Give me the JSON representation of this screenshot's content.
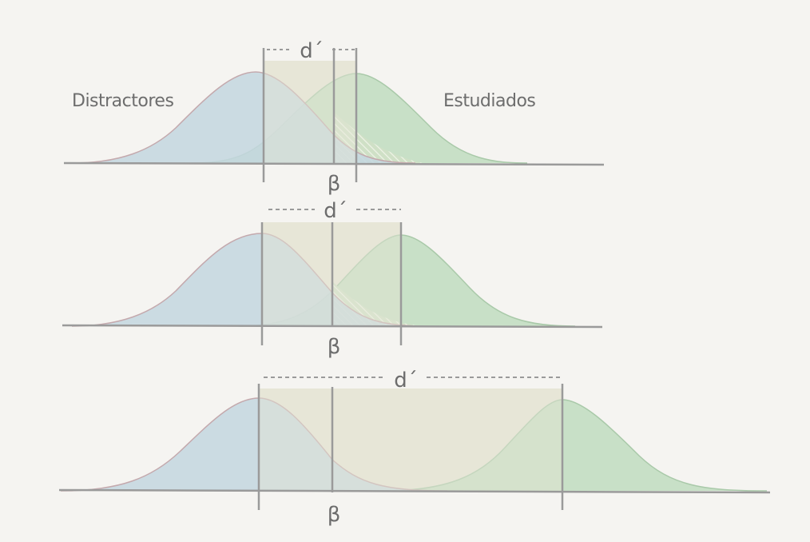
{
  "labels": {
    "distractors": "Distractores",
    "studied": "Estudiados",
    "d_prime": "d´",
    "beta": "β"
  },
  "colors": {
    "background": "#f5f4f1",
    "distractor_fill": "#c3d6df",
    "distractor_stroke": "#c4a9ad",
    "studied_fill": "#bfdcbf",
    "studied_stroke": "#a9c9a9",
    "overlap_band": "#e2e2cf",
    "line": "#9a9a9a",
    "text": "#6d6d6d"
  },
  "panels": [
    {
      "label": "small-separation",
      "d_prime": 0.5,
      "hatched_overlap": true,
      "show_group_labels": true
    },
    {
      "label": "medium-separation",
      "d_prime": 1.0,
      "hatched_overlap": true,
      "show_group_labels": false
    },
    {
      "label": "large-separation",
      "d_prime": 3.0,
      "hatched_overlap": false,
      "show_group_labels": false
    }
  ]
}
